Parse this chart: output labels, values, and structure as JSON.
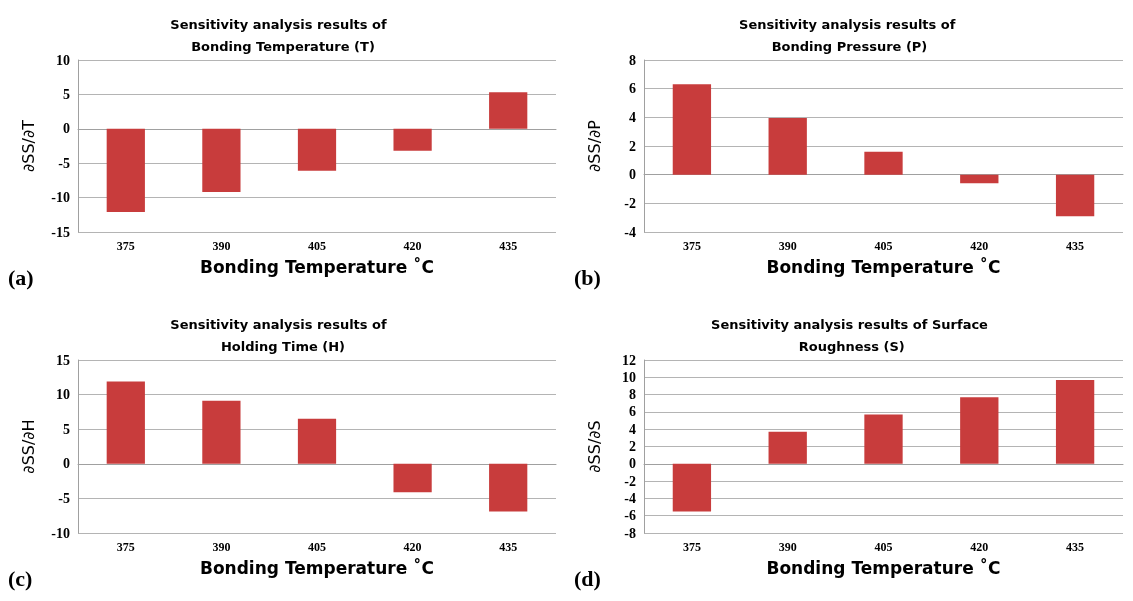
{
  "chart_data": [
    {
      "type": "bar",
      "title": "Sensitivity analysis results of  Bonding Temperature (T)",
      "xlabel": "Bonding Temperature ˚C",
      "ylabel": "∂SS/∂T",
      "categories": [
        "375",
        "390",
        "405",
        "420",
        "435"
      ],
      "values": [
        -12.1,
        -9.2,
        -6.1,
        -3.2,
        5.3
      ],
      "color": "#c83c3c",
      "ylim": [
        -15,
        10
      ],
      "yticks": [
        -15,
        -10,
        -5,
        0,
        5,
        10
      ],
      "grid": "y",
      "annotations": [
        "(a)"
      ]
    },
    {
      "type": "bar",
      "title": "Sensitivity analysis results of Bonding Pressure (P)",
      "xlabel": "Bonding Temperature ˚C",
      "ylabel": "∂SS/∂P",
      "categories": [
        "375",
        "390",
        "405",
        "420",
        "435"
      ],
      "values": [
        6.3,
        3.95,
        1.6,
        -0.6,
        -2.9
      ],
      "color": "#c83c3c",
      "ylim": [
        -4,
        8
      ],
      "yticks": [
        -4,
        -2,
        0,
        2,
        4,
        6,
        8
      ],
      "grid": "y",
      "annotations": [
        "(b)"
      ]
    },
    {
      "type": "bar",
      "title": "Sensitivity analysis results of  Holding Time (H)",
      "xlabel": "Bonding Temperature ˚C",
      "ylabel": "∂SS/∂H",
      "categories": [
        "375",
        "390",
        "405",
        "420",
        "435"
      ],
      "values": [
        11.9,
        9.1,
        6.5,
        -4.1,
        -6.9
      ],
      "color": "#c83c3c",
      "ylim": [
        -10,
        15
      ],
      "yticks": [
        -10,
        -5,
        0,
        5,
        10,
        15
      ],
      "grid": "y",
      "annotations": [
        "(c)"
      ]
    },
    {
      "type": "bar",
      "title": "Sensitivity analysis results of Surface Roughness (S)",
      "xlabel": "Bonding Temperature ˚C",
      "ylabel": "∂SS/∂S",
      "categories": [
        "375",
        "390",
        "405",
        "420",
        "435"
      ],
      "values": [
        -5.5,
        3.7,
        5.7,
        7.7,
        9.7
      ],
      "color": "#c83c3c",
      "ylim": [
        -8,
        12
      ],
      "yticks": [
        -8,
        -6,
        -4,
        -2,
        0,
        2,
        4,
        6,
        8,
        10,
        12
      ],
      "grid": "y",
      "annotations": [
        "(d)"
      ]
    }
  ]
}
